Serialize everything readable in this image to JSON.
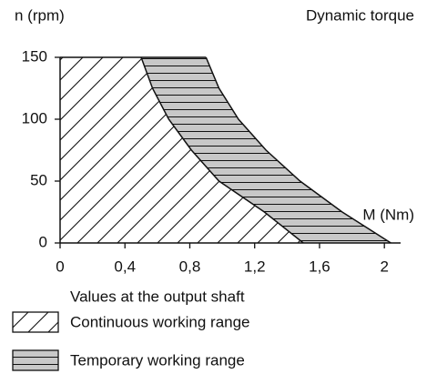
{
  "chart_data": {
    "type": "area",
    "title": "Dynamic torque",
    "y_label": "n (rpm)",
    "x_label": "M (Nm)",
    "legend_title": "Values at the output shaft",
    "series": [
      {
        "name": "Continuous working range",
        "color": "#ffffff",
        "pattern": "diagonal",
        "x": [
          0.5,
          0.57,
          0.67,
          0.81,
          0.98,
          1.26,
          1.5
        ],
        "values": [
          150,
          125,
          100,
          75,
          50,
          25,
          0
        ]
      },
      {
        "name": "Temporary working range",
        "color": "#c8c8c8",
        "pattern": "horizontal",
        "x": [
          0.9,
          0.98,
          1.1,
          1.27,
          1.48,
          1.74,
          2.04
        ],
        "values": [
          150,
          125,
          100,
          75,
          50,
          25,
          0
        ]
      }
    ],
    "xlim": [
      0,
      2.1
    ],
    "ylim": [
      0,
      150
    ],
    "xticks": [
      0,
      {
        "value": 0.4,
        "label": "0,4"
      },
      {
        "value": 0.8,
        "label": "0,8"
      },
      {
        "value": 1.2,
        "label": "1,2"
      },
      {
        "value": 1.6,
        "label": "1,6"
      },
      2
    ],
    "yticks": [
      0,
      50,
      100,
      150
    ]
  }
}
